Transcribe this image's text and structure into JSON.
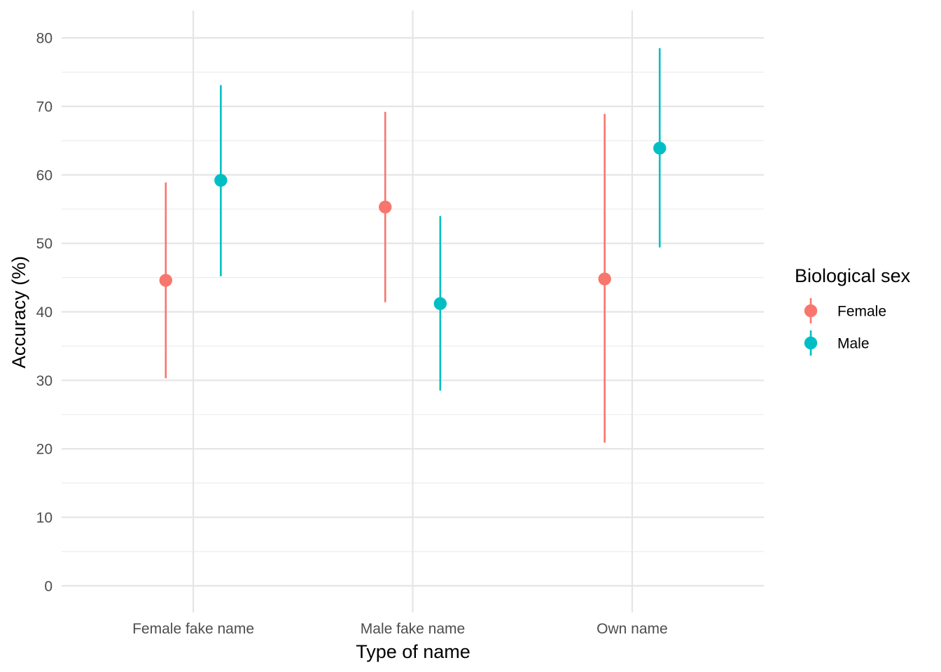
{
  "chart_data": {
    "type": "pointrange",
    "xlabel": "Type of name",
    "ylabel": "Accuracy (%)",
    "categories": [
      "Female fake name",
      "Male fake name",
      "Own name"
    ],
    "ylim": [
      -3.9,
      84
    ],
    "yticks": [
      0,
      10,
      20,
      30,
      40,
      50,
      60,
      70,
      80
    ],
    "grid": true,
    "legend": {
      "title": "Biological sex",
      "position": "right"
    },
    "series": [
      {
        "name": "Female",
        "color": "#F8766D",
        "points": [
          {
            "x": "Female fake name",
            "y": 44.6,
            "lower": 30.3,
            "upper": 58.9
          },
          {
            "x": "Male fake name",
            "y": 55.3,
            "lower": 41.4,
            "upper": 69.2
          },
          {
            "x": "Own name",
            "y": 44.8,
            "lower": 20.9,
            "upper": 68.9
          }
        ]
      },
      {
        "name": "Male",
        "color": "#00BFC4",
        "points": [
          {
            "x": "Female fake name",
            "y": 59.2,
            "lower": 45.2,
            "upper": 73.1
          },
          {
            "x": "Male fake name",
            "y": 41.2,
            "lower": 28.5,
            "upper": 54.0
          },
          {
            "x": "Own name",
            "y": 63.9,
            "lower": 49.4,
            "upper": 78.5
          }
        ]
      }
    ]
  }
}
